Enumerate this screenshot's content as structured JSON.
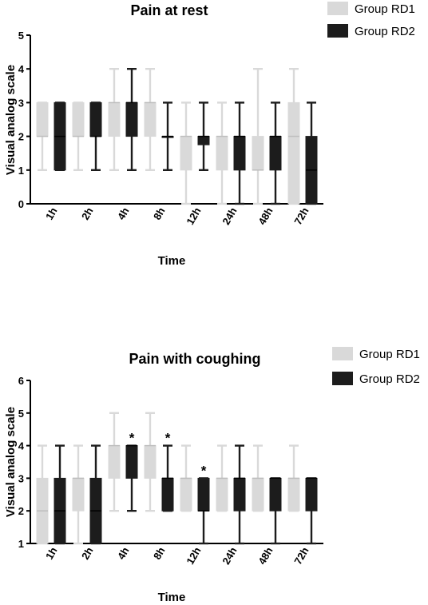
{
  "chart_data": [
    {
      "type": "box",
      "title": "Pain at rest",
      "xlabel": "Time",
      "ylabel": "Visual analog scale",
      "ylim": [
        0,
        5
      ],
      "yticks": [
        "0",
        "1",
        "2",
        "3",
        "4",
        "5"
      ],
      "categories": [
        "1h",
        "2h",
        "4h",
        "8h",
        "12h",
        "24h",
        "48h",
        "72h"
      ],
      "legend_position": "top-right",
      "series": [
        {
          "name": "Group RD1",
          "color": "#d9d9d9",
          "boxes": [
            {
              "min": 1,
              "q1": 2,
              "median": 2,
              "q3": 3,
              "max": 3
            },
            {
              "min": 1,
              "q1": 2,
              "median": 2,
              "q3": 3,
              "max": 3
            },
            {
              "min": 1,
              "q1": 2,
              "median": 3,
              "q3": 3,
              "max": 4
            },
            {
              "min": 1,
              "q1": 2,
              "median": 3,
              "q3": 3,
              "max": 4
            },
            {
              "min": 0,
              "q1": 1,
              "median": 2,
              "q3": 2,
              "max": 3
            },
            {
              "min": 0,
              "q1": 1,
              "median": 2,
              "q3": 2,
              "max": 3
            },
            {
              "min": 0,
              "q1": 1,
              "median": 1,
              "q3": 2,
              "max": 4
            },
            {
              "min": 0,
              "q1": 0,
              "median": 2,
              "q3": 3,
              "max": 4
            }
          ]
        },
        {
          "name": "Group RD2",
          "color": "#1c1c1c",
          "boxes": [
            {
              "min": 1,
              "q1": 1,
              "median": 2,
              "q3": 3,
              "max": 3
            },
            {
              "min": 1,
              "q1": 2,
              "median": 2,
              "q3": 3,
              "max": 3
            },
            {
              "min": 1,
              "q1": 2,
              "median": 3,
              "q3": 3,
              "max": 4
            },
            {
              "min": 1,
              "q1": 2,
              "median": 2,
              "q3": 2,
              "max": 3
            },
            {
              "min": 1,
              "q1": 1.75,
              "median": 2,
              "q3": 2,
              "max": 3
            },
            {
              "min": 0,
              "q1": 1,
              "median": 2,
              "q3": 2,
              "max": 3
            },
            {
              "min": 0,
              "q1": 1,
              "median": 2,
              "q3": 2,
              "max": 3
            },
            {
              "min": 0,
              "q1": 0,
              "median": 1,
              "q3": 2,
              "max": 3
            }
          ]
        }
      ],
      "annotations": []
    },
    {
      "type": "box",
      "title": "Pain with coughing",
      "xlabel": "Time",
      "ylabel": "Visual analog scale",
      "ylim": [
        1,
        6
      ],
      "yticks": [
        "1",
        "2",
        "3",
        "4",
        "5",
        "6"
      ],
      "categories": [
        "1h",
        "2h",
        "4h",
        "8h",
        "12h",
        "24h",
        "48h",
        "72h"
      ],
      "legend_position": "top-right",
      "series": [
        {
          "name": "Group RD1",
          "color": "#d9d9d9",
          "boxes": [
            {
              "min": 1,
              "q1": 1,
              "median": 2,
              "q3": 3,
              "max": 4
            },
            {
              "min": 1,
              "q1": 2,
              "median": 3,
              "q3": 3,
              "max": 4
            },
            {
              "min": 2,
              "q1": 3,
              "median": 4,
              "q3": 4,
              "max": 5
            },
            {
              "min": 2,
              "q1": 3,
              "median": 4,
              "q3": 4,
              "max": 5
            },
            {
              "min": 2,
              "q1": 2,
              "median": 3,
              "q3": 3,
              "max": 4
            },
            {
              "min": 2,
              "q1": 2,
              "median": 3,
              "q3": 3,
              "max": 4
            },
            {
              "min": 2,
              "q1": 2,
              "median": 3,
              "q3": 3,
              "max": 4
            },
            {
              "min": 2,
              "q1": 2,
              "median": 3,
              "q3": 3,
              "max": 4
            }
          ]
        },
        {
          "name": "Group RD2",
          "color": "#1c1c1c",
          "boxes": [
            {
              "min": 1,
              "q1": 1,
              "median": 2,
              "q3": 3,
              "max": 4
            },
            {
              "min": 1,
              "q1": 1,
              "median": 2,
              "q3": 3,
              "max": 4
            },
            {
              "min": 2,
              "q1": 3,
              "median": 4,
              "q3": 4,
              "max": 4
            },
            {
              "min": 2,
              "q1": 2,
              "median": 3,
              "q3": 3,
              "max": 4
            },
            {
              "min": 1,
              "q1": 2,
              "median": 2,
              "q3": 3,
              "max": 3
            },
            {
              "min": 1,
              "q1": 2,
              "median": 3,
              "q3": 3,
              "max": 4
            },
            {
              "min": 1,
              "q1": 2,
              "median": 3,
              "q3": 3,
              "max": 3
            },
            {
              "min": 1,
              "q1": 2,
              "median": 3,
              "q3": 3,
              "max": 3
            }
          ]
        }
      ],
      "annotations": [
        {
          "text": "*",
          "category": "4h",
          "series": "Group RD2"
        },
        {
          "text": "*",
          "category": "8h",
          "series": "Group RD2"
        },
        {
          "text": "*",
          "category": "12h",
          "series": "Group RD2"
        }
      ]
    }
  ]
}
